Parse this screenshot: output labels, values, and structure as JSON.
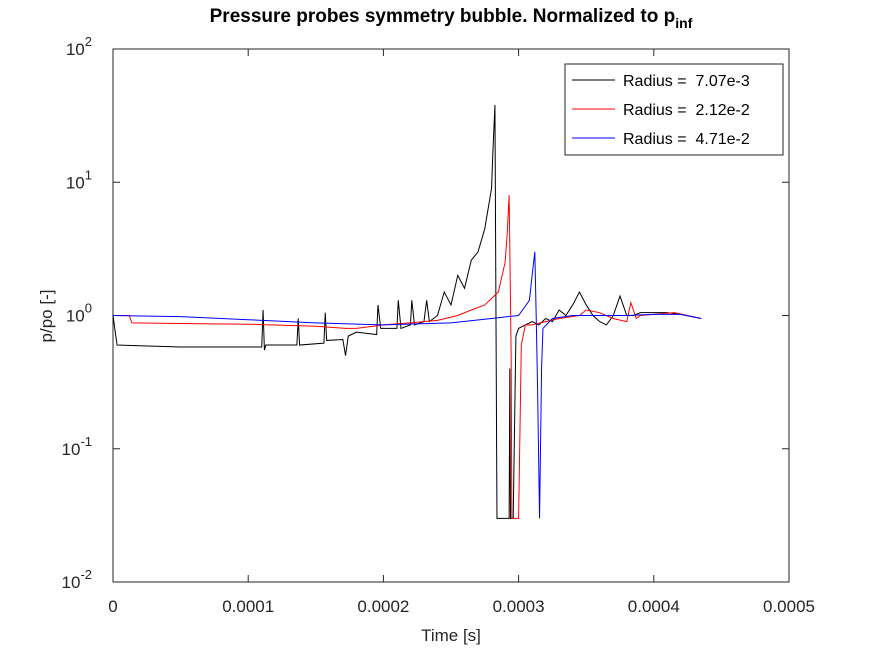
{
  "chart_data": {
    "type": "line",
    "title": "Pressure probes symmetry bubble. Normalized to p",
    "title_subscript": "inf",
    "x_label": "Time [s]",
    "y_label": "p/po [-]",
    "xlim": [
      0,
      0.0005
    ],
    "xticks": [
      0,
      0.0001,
      0.0002,
      0.0003,
      0.0004,
      0.0005
    ],
    "ylim": [
      0.01,
      100
    ],
    "yticks": [
      {
        "value": 0.01,
        "label": "10",
        "power": "-2"
      },
      {
        "value": 0.1,
        "label": "10",
        "power": "-1"
      },
      {
        "value": 1,
        "label": "10",
        "power": "0"
      },
      {
        "value": 10,
        "label": "10",
        "power": "1"
      },
      {
        "value": 100,
        "label": "10",
        "power": "2"
      }
    ],
    "ylog": true,
    "grid": false,
    "legend": "northeast",
    "series": [
      {
        "name": "Radius =  7.07e-3",
        "color": "#000000",
        "x": [
          0,
          3e-06,
          5e-05,
          0.00011,
          0.000111,
          0.000112,
          0.000113,
          0.000136,
          0.000137,
          0.000138,
          0.000156,
          0.000157,
          0.000158,
          0.00017,
          0.000172,
          0.000174,
          0.00018,
          0.000195,
          0.000196,
          0.000198,
          0.00021,
          0.000211,
          0.000213,
          0.00022,
          0.000221,
          0.000223,
          0.00023,
          0.000232,
          0.000234,
          0.00024,
          0.000245,
          0.00025,
          0.000255,
          0.00026,
          0.000265,
          0.00027,
          0.000275,
          0.00028,
          0.000281,
          0.0002825,
          0.000284,
          0.000293,
          0.0002935,
          0.000294,
          0.000296,
          0.000298,
          0.0003,
          0.000305,
          0.00031,
          0.000315,
          0.00032,
          0.000325,
          0.00033,
          0.000335,
          0.00034,
          0.000345,
          0.00035,
          0.000355,
          0.00036,
          0.000365,
          0.00037,
          0.000375,
          0.00038,
          0.000385,
          0.00039,
          0.0004,
          0.00041,
          0.00042,
          0.000435
        ],
        "values": [
          1.0,
          0.6,
          0.58,
          0.58,
          1.1,
          0.55,
          0.6,
          0.6,
          0.95,
          0.6,
          0.62,
          1.05,
          0.65,
          0.66,
          0.5,
          0.7,
          0.75,
          0.72,
          1.2,
          0.8,
          0.8,
          1.3,
          0.8,
          0.85,
          1.3,
          0.85,
          0.9,
          1.3,
          0.9,
          1.0,
          1.5,
          1.2,
          2.0,
          1.6,
          2.6,
          3.0,
          4.5,
          9,
          17,
          38,
          0.03,
          0.03,
          0.4,
          0.03,
          0.03,
          0.7,
          0.8,
          0.85,
          0.9,
          0.85,
          0.95,
          0.9,
          1.1,
          1.0,
          1.2,
          1.5,
          1.2,
          1.0,
          0.9,
          0.85,
          1.0,
          1.4,
          1.0,
          1.0,
          1.05,
          1.05,
          1.05,
          1.02,
          0.95
        ]
      },
      {
        "name": "Radius =  2.12e-2",
        "color": "#ff0000",
        "x": [
          0,
          1.2e-05,
          1.4e-05,
          5e-05,
          0.0001,
          0.00015,
          0.000172,
          0.00018,
          0.0002,
          0.00022,
          0.00024,
          0.000255,
          0.000265,
          0.000275,
          0.000285,
          0.00029,
          0.0002915,
          0.000293,
          0.0002945,
          0.000295,
          0.0003,
          0.000302,
          0.000305,
          0.00031,
          0.00032,
          0.00033,
          0.000345,
          0.00035,
          0.00036,
          0.00037,
          0.00038,
          0.000383,
          0.000387,
          0.00039,
          0.0004,
          0.000415,
          0.000425,
          0.000435
        ],
        "values": [
          1.0,
          1.0,
          0.88,
          0.87,
          0.86,
          0.83,
          0.8,
          0.8,
          0.85,
          0.88,
          0.92,
          1.0,
          1.1,
          1.2,
          1.5,
          2.5,
          4,
          8,
          0.5,
          0.03,
          0.03,
          0.6,
          0.85,
          0.85,
          0.9,
          0.95,
          1.0,
          1.1,
          1.05,
          0.95,
          0.9,
          1.25,
          0.95,
          1.0,
          1.02,
          1.05,
          1.0,
          0.95
        ]
      },
      {
        "name": "Radius =  4.71e-2",
        "color": "#0000ff",
        "x": [
          0,
          5e-05,
          0.0001,
          0.00015,
          0.0002,
          0.00025,
          0.00028,
          0.0003,
          0.000308,
          0.00031,
          0.000312,
          0.000313,
          0.000314,
          0.0003155,
          0.000317,
          0.000318,
          0.000325,
          0.00034,
          0.00036,
          0.00038,
          0.0004,
          0.00042,
          0.000435
        ],
        "values": [
          1.0,
          0.98,
          0.93,
          0.88,
          0.85,
          0.88,
          0.95,
          1.0,
          1.3,
          2,
          3.0,
          1.0,
          0.3,
          0.03,
          0.4,
          0.8,
          0.95,
          1.0,
          1.0,
          1.0,
          1.02,
          1.02,
          0.95
        ]
      }
    ]
  }
}
